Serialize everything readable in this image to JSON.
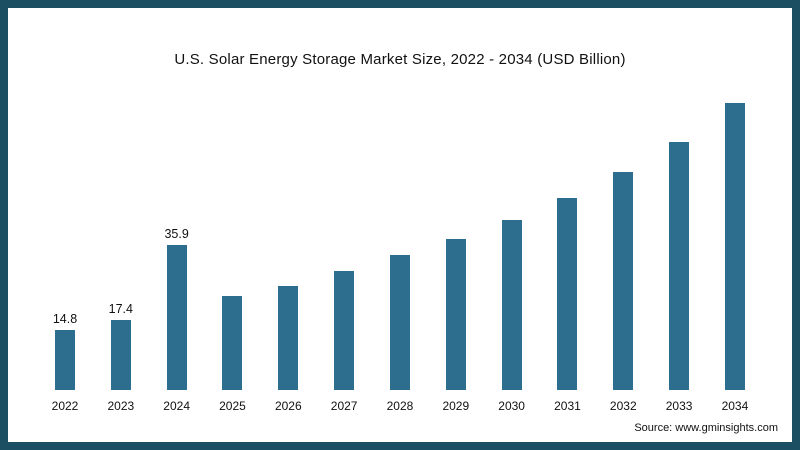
{
  "frame": {
    "border_color": "#1d4f63",
    "background": "#ffffff"
  },
  "chart_data": {
    "type": "bar",
    "title": "U.S. Solar Energy Storage Market Size, 2022 - 2034 (USD Billion)",
    "categories": [
      "2022",
      "2023",
      "2024",
      "2025",
      "2026",
      "2027",
      "2028",
      "2029",
      "2030",
      "2031",
      "2032",
      "2033",
      "2034"
    ],
    "values": [
      14.8,
      17.4,
      35.9,
      23.1,
      25.7,
      29.4,
      33.2,
      37.3,
      42.0,
      47.5,
      53.8,
      61.3,
      70.8
    ],
    "data_labels": [
      "14.8",
      "17.4",
      "35.9",
      "",
      "",
      "",
      "",
      "",
      "",
      "",
      "",
      "",
      ""
    ],
    "bar_color": "#2d6e8e",
    "xlabel": "",
    "ylabel": "",
    "ylim": [
      0,
      75
    ],
    "grid": false,
    "legend": false
  },
  "source": {
    "label": "Source: www.gminsights.com"
  }
}
